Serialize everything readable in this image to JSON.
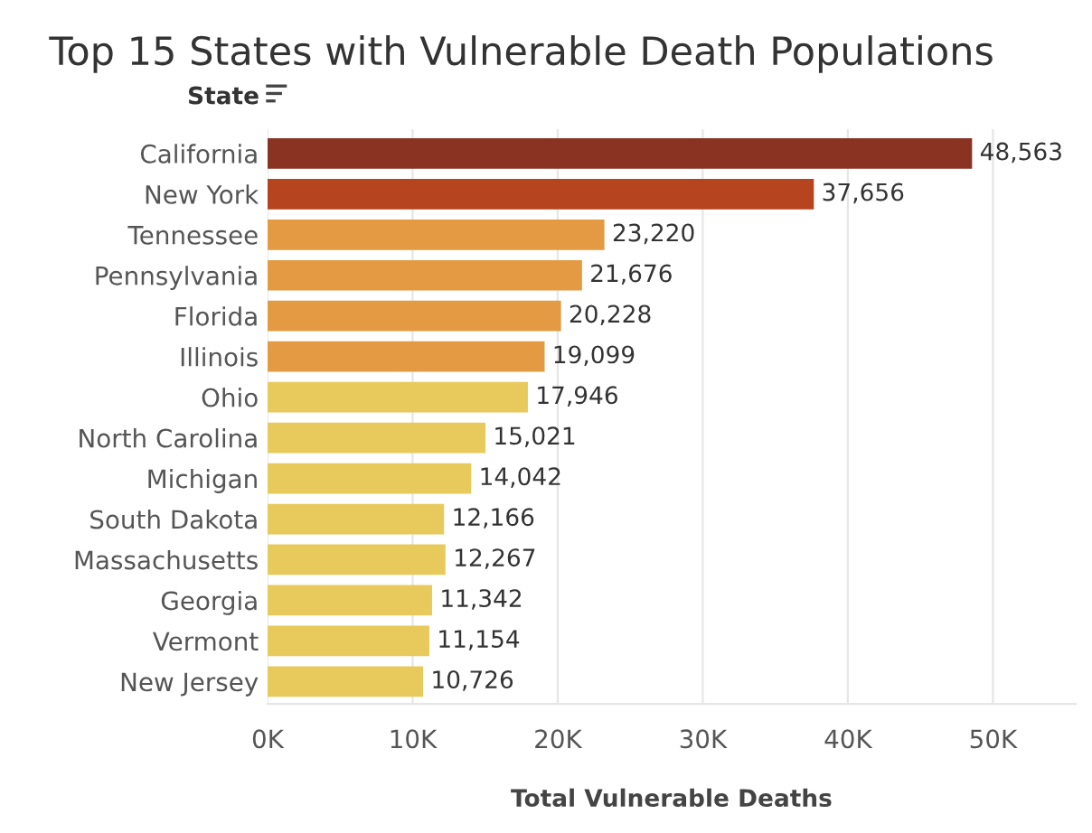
{
  "chart_data": {
    "type": "bar",
    "orientation": "horizontal",
    "title": "Top 15 States with Vulnerable Death Populations",
    "ylabel": "State",
    "xlabel": "Total Vulnerable Deaths",
    "categories": [
      "California",
      "New York",
      "Tennessee",
      "Pennsylvania",
      "Florida",
      "Illinois",
      "Ohio",
      "North Carolina",
      "Michigan",
      "South Dakota",
      "Massachusetts",
      "Georgia",
      "Vermont",
      "New Jersey"
    ],
    "values": [
      48563,
      37656,
      23220,
      21676,
      20228,
      19099,
      17946,
      15021,
      14042,
      12166,
      12267,
      11342,
      11154,
      10726
    ],
    "colors": [
      "#8a3322",
      "#b5441f",
      "#e39a42",
      "#e39a42",
      "#e39a42",
      "#e39a42",
      "#e8ca5c",
      "#e8ca5c",
      "#e8ca5c",
      "#e8ca5c",
      "#e8ca5c",
      "#e8ca5c",
      "#e8ca5c",
      "#e8ca5c"
    ],
    "value_labels": [
      "48,563",
      "37,656",
      "23,220",
      "21,676",
      "20,228",
      "19,099",
      "17,946",
      "15,021",
      "14,042",
      "12,166",
      "12,267",
      "11,342",
      "11,154",
      "10,726"
    ],
    "xlim": [
      0,
      55700
    ],
    "xticks": [
      {
        "value": 0,
        "label": "0K"
      },
      {
        "value": 10000,
        "label": "10K"
      },
      {
        "value": 20000,
        "label": "20K"
      },
      {
        "value": 30000,
        "label": "30K"
      },
      {
        "value": 40000,
        "label": "40K"
      },
      {
        "value": 50000,
        "label": "50K"
      }
    ],
    "grid": "x",
    "legend": false
  }
}
